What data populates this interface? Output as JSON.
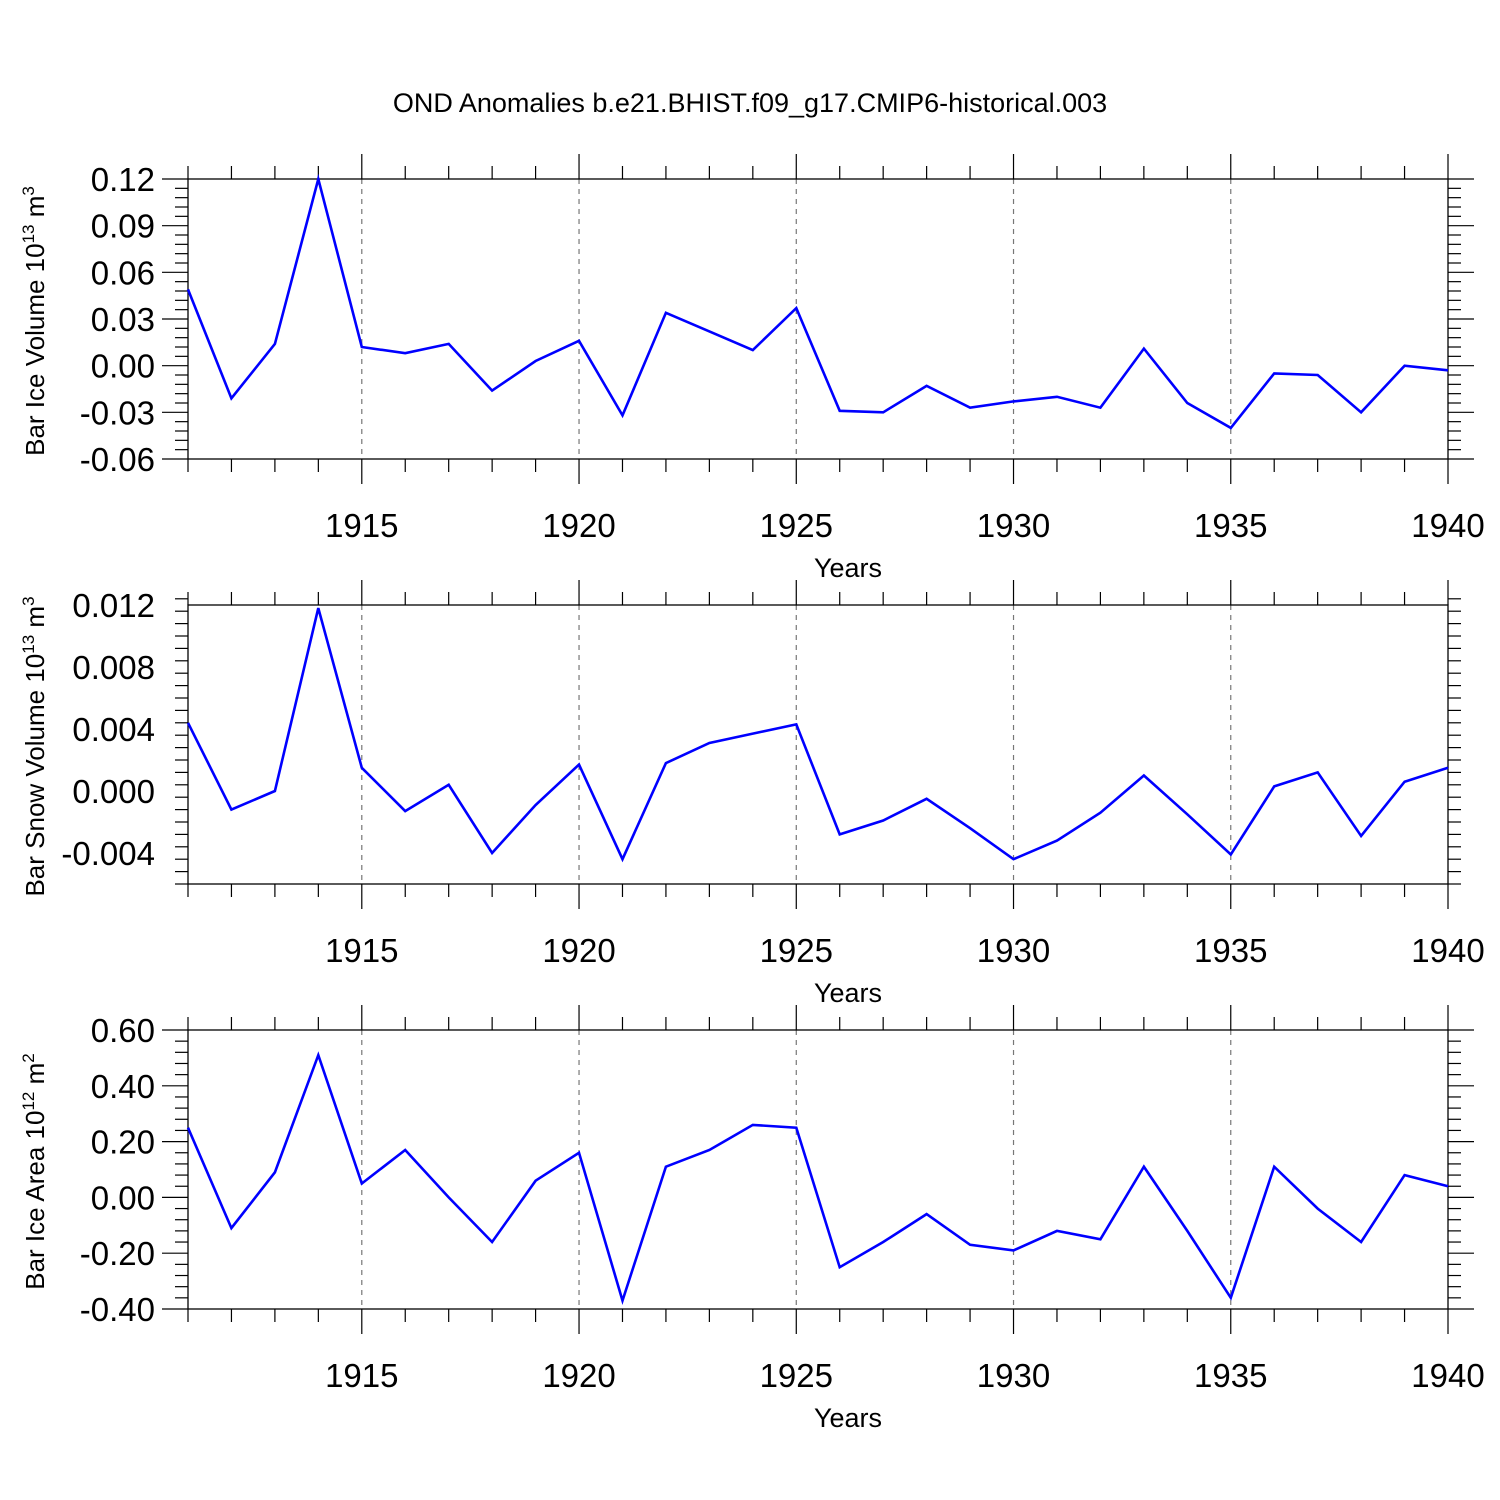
{
  "title": "OND Anomalies b.e21.BHIST.f09_g17.CMIP6-historical.003",
  "line_color": "#0000ff",
  "chart_data": [
    {
      "type": "line",
      "xlabel": "Years",
      "ylabel_main": "Bar Ice Volume 10",
      "ylabel_exp": "13",
      "ylabel_unit": " m",
      "ylabel_unit_exp": "3",
      "xlim": [
        1911,
        1940
      ],
      "ylim": [
        -0.06,
        0.12
      ],
      "yticks": [
        "0.12",
        "0.09",
        "0.06",
        "0.03",
        "0.00",
        "-0.03",
        "-0.06"
      ],
      "ytick_values": [
        0.12,
        0.09,
        0.06,
        0.03,
        0.0,
        -0.03,
        -0.06
      ],
      "xticks": [
        "1915",
        "1920",
        "1925",
        "1930",
        "1935",
        "1940"
      ],
      "xtick_values": [
        1915,
        1920,
        1925,
        1930,
        1935,
        1940
      ],
      "x": [
        1911,
        1912,
        1913,
        1914,
        1915,
        1916,
        1917,
        1918,
        1919,
        1920,
        1921,
        1922,
        1923,
        1924,
        1925,
        1926,
        1927,
        1928,
        1929,
        1930,
        1931,
        1932,
        1933,
        1934,
        1935,
        1936,
        1937,
        1938,
        1939,
        1940
      ],
      "values": [
        0.049,
        -0.021,
        0.014,
        0.12,
        0.012,
        0.008,
        0.014,
        -0.016,
        0.003,
        0.016,
        -0.032,
        0.034,
        0.022,
        0.01,
        0.037,
        -0.029,
        -0.03,
        -0.013,
        -0.027,
        -0.023,
        -0.02,
        -0.027,
        0.011,
        -0.024,
        -0.04,
        -0.005,
        -0.006,
        -0.03,
        0.0,
        -0.003
      ]
    },
    {
      "type": "line",
      "xlabel": "Years",
      "ylabel_main": "Bar Snow Volume 10",
      "ylabel_exp": "13",
      "ylabel_unit": " m",
      "ylabel_unit_exp": "3",
      "xlim": [
        1911,
        1940
      ],
      "ylim": [
        -0.006,
        0.012
      ],
      "yticks": [
        "0.012",
        "0.008",
        "0.004",
        "0.000",
        "-0.004"
      ],
      "ytick_values": [
        0.012,
        0.008,
        0.004,
        0.0,
        -0.004
      ],
      "xticks": [
        "1915",
        "1920",
        "1925",
        "1930",
        "1935",
        "1940"
      ],
      "xtick_values": [
        1915,
        1920,
        1925,
        1930,
        1935,
        1940
      ],
      "x": [
        1911,
        1912,
        1913,
        1914,
        1915,
        1916,
        1917,
        1918,
        1919,
        1920,
        1921,
        1922,
        1923,
        1924,
        1925,
        1926,
        1927,
        1928,
        1929,
        1930,
        1931,
        1932,
        1933,
        1934,
        1935,
        1936,
        1937,
        1938,
        1939,
        1940
      ],
      "values": [
        0.0044,
        -0.0012,
        0.0,
        0.0118,
        0.0015,
        -0.0013,
        0.0004,
        -0.004,
        -0.0009,
        0.0017,
        -0.0044,
        0.0018,
        0.0031,
        0.0037,
        0.0043,
        -0.0028,
        -0.0019,
        -0.0005,
        -0.0024,
        -0.0044,
        -0.0032,
        -0.0014,
        0.001,
        -0.0015,
        -0.0041,
        0.0003,
        0.0012,
        -0.0029,
        0.0006,
        0.0015
      ]
    },
    {
      "type": "line",
      "xlabel": "Years",
      "ylabel_main": "Bar Ice Area 10",
      "ylabel_exp": "12",
      "ylabel_unit": " m",
      "ylabel_unit_exp": "2",
      "xlim": [
        1911,
        1940
      ],
      "ylim": [
        -0.4,
        0.6
      ],
      "yticks": [
        "0.60",
        "0.40",
        "0.20",
        "0.00",
        "-0.20",
        "-0.40"
      ],
      "ytick_values": [
        0.6,
        0.4,
        0.2,
        0.0,
        -0.2,
        -0.4
      ],
      "xticks": [
        "1915",
        "1920",
        "1925",
        "1930",
        "1935",
        "1940"
      ],
      "xtick_values": [
        1915,
        1920,
        1925,
        1930,
        1935,
        1940
      ],
      "x": [
        1911,
        1912,
        1913,
        1914,
        1915,
        1916,
        1917,
        1918,
        1919,
        1920,
        1921,
        1922,
        1923,
        1924,
        1925,
        1926,
        1927,
        1928,
        1929,
        1930,
        1931,
        1932,
        1933,
        1934,
        1935,
        1936,
        1937,
        1938,
        1939,
        1940
      ],
      "values": [
        0.25,
        -0.11,
        0.09,
        0.51,
        0.05,
        0.17,
        0.0,
        -0.16,
        0.06,
        0.16,
        -0.37,
        0.11,
        0.17,
        0.26,
        0.25,
        -0.25,
        -0.16,
        -0.06,
        -0.17,
        -0.19,
        -0.12,
        -0.15,
        0.11,
        -0.12,
        -0.36,
        0.11,
        -0.04,
        -0.16,
        0.08,
        0.04
      ]
    }
  ]
}
